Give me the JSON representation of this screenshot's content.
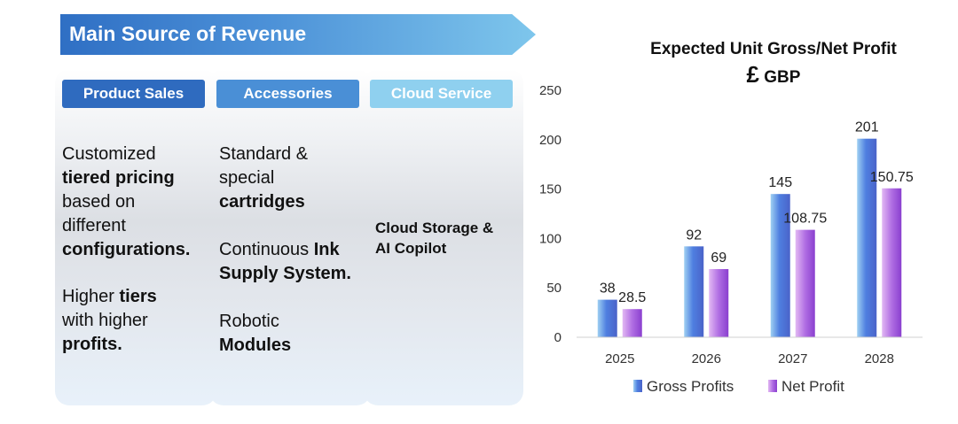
{
  "banner": {
    "title": "Main Source of Revenue"
  },
  "columns": [
    {
      "header": "Product Sales",
      "color": "#2f6bbf",
      "blocks": [
        [
          {
            "t": "Customized "
          },
          {
            "t": "tiered pricing",
            "b": true
          },
          {
            "t": " based on different "
          },
          {
            "t": "configurations",
            "b": true
          },
          {
            "t": "."
          }
        ],
        [
          {
            "t": "Higher "
          },
          {
            "t": "tiers",
            "b": true
          },
          {
            "t": " with higher "
          },
          {
            "t": "profits.",
            "b": true
          }
        ]
      ]
    },
    {
      "header": "Accessories",
      "color": "#4a8fd6",
      "blocks": [
        [
          {
            "t": "Standard & special "
          },
          {
            "t": "cartridges",
            "b": true
          }
        ],
        [
          {
            "t": "Continuous "
          },
          {
            "t": "Ink Supply System.",
            "b": true
          }
        ],
        [
          {
            "t": "Robotic "
          },
          {
            "t": "Modules",
            "b": true
          }
        ]
      ]
    },
    {
      "header": "Cloud Service",
      "color": "#8fd0ef",
      "blocks": [
        [
          {
            "t": "Cloud Storage & AI Copilot",
            "b": true
          }
        ]
      ]
    }
  ],
  "chart_data": {
    "type": "bar",
    "title": "Expected Unit Gross/Net Profit",
    "subtitle_symbol": "£",
    "subtitle": "GBP",
    "categories": [
      "2025",
      "2026",
      "2027",
      "2028"
    ],
    "series": [
      {
        "name": "Gross Profits",
        "values": [
          38,
          92,
          145,
          201
        ],
        "labels": [
          "38",
          "92",
          "145",
          "201"
        ]
      },
      {
        "name": "Net Profit",
        "values": [
          28.5,
          69,
          108.75,
          150.75
        ],
        "labels": [
          "28.5",
          "69",
          "108.75",
          "150.75"
        ]
      }
    ],
    "ylim": [
      0,
      250
    ],
    "yticks": [
      0,
      50,
      100,
      150,
      200,
      250
    ],
    "grid": false,
    "legend": "bottom",
    "colors": {
      "gross": "#4f7fe0",
      "net": "#9b4fd6"
    }
  }
}
